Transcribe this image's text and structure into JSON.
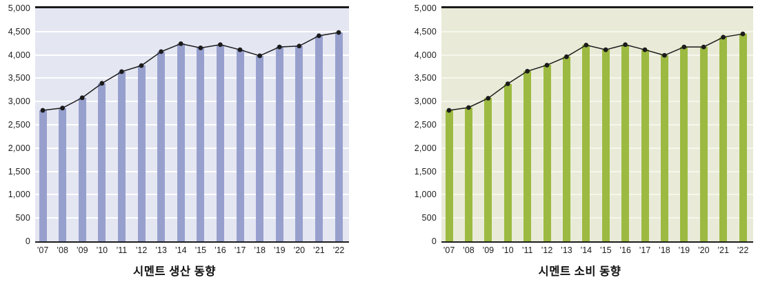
{
  "chart_data": [
    {
      "type": "bar",
      "overlay": "line-with-dot-markers",
      "title": "시멘트 생산 동향",
      "categories": [
        "’07",
        "’08",
        "’09",
        "’10",
        "’11",
        "’12",
        "’13",
        "’14",
        "’15",
        "’16",
        "’17",
        "’18",
        "’19",
        "’20",
        "’21",
        "’22"
      ],
      "values": [
        2810,
        2860,
        3080,
        3390,
        3640,
        3770,
        4070,
        4240,
        4150,
        4220,
        4110,
        3980,
        4170,
        4190,
        4410,
        4480
      ],
      "ylim": [
        0,
        5000
      ],
      "y_tick_step": 500,
      "y_tick_labels": [
        "5,000",
        "4,500",
        "4,000",
        "3,500",
        "3,000",
        "2,500",
        "2,000",
        "1,500",
        "1,000",
        "500",
        "0"
      ],
      "xlabel": "",
      "ylabel": "",
      "grid": "horizontal",
      "legend": "none",
      "bar_color": "#97a0cd",
      "plot_bg": "#e4e6f2",
      "grid_color": "#ffffff",
      "line_color": "#1b1b1b",
      "marker_color": "#1b1b1b"
    },
    {
      "type": "bar",
      "overlay": "line-with-dot-markers",
      "title": "시멘트 소비 동향",
      "categories": [
        "’07",
        "’08",
        "’09",
        "’10",
        "’11",
        "’12",
        "’13",
        "’14",
        "’15",
        "’16",
        "’17",
        "’18",
        "’19",
        "’20",
        "’21",
        "’22"
      ],
      "values": [
        2810,
        2870,
        3070,
        3380,
        3650,
        3780,
        3960,
        4210,
        4110,
        4220,
        4110,
        3990,
        4170,
        4170,
        4380,
        4450
      ],
      "ylim": [
        0,
        5000
      ],
      "y_tick_step": 500,
      "y_tick_labels": [
        "5,000",
        "4,500",
        "4,000",
        "3,500",
        "3,000",
        "2,500",
        "2,000",
        "1,500",
        "1,000",
        "500",
        "0"
      ],
      "xlabel": "",
      "ylabel": "",
      "grid": "horizontal",
      "legend": "none",
      "bar_color": "#9cba41",
      "plot_bg": "#e9ebd8",
      "grid_color": "#f6f7eb",
      "line_color": "#1b1b1b",
      "marker_color": "#1b1b1b"
    }
  ]
}
